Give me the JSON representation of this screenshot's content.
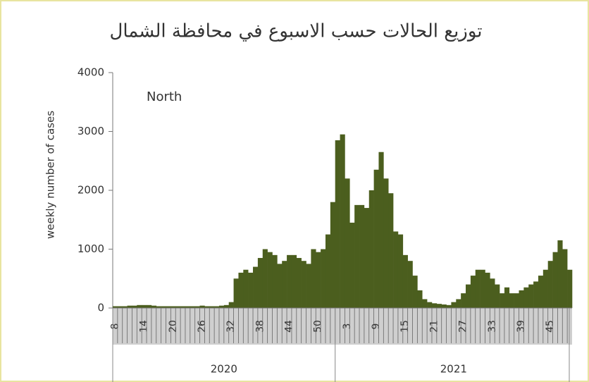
{
  "chart_data": {
    "type": "bar",
    "title": "توزيع الحالات حسب الاسبوع في محافظة الشمال",
    "annotation": "North",
    "y_label": "weekly number of cases",
    "color": "#4b5e1e",
    "ylim": [
      0,
      4000
    ],
    "yticks": [
      0,
      1000,
      2000,
      3000,
      4000
    ],
    "years": [
      "2020",
      "2021"
    ],
    "categories": [
      "8",
      null,
      null,
      null,
      null,
      null,
      "14",
      null,
      null,
      null,
      null,
      null,
      "20",
      null,
      null,
      null,
      null,
      null,
      "26",
      null,
      null,
      null,
      null,
      null,
      "32",
      null,
      null,
      null,
      null,
      null,
      "38",
      null,
      null,
      null,
      null,
      null,
      "44",
      null,
      null,
      null,
      null,
      null,
      "50",
      null,
      null,
      null,
      null,
      null,
      "3",
      null,
      null,
      null,
      null,
      null,
      "9",
      null,
      null,
      null,
      null,
      null,
      "15",
      null,
      null,
      null,
      null,
      null,
      "21",
      null,
      null,
      null,
      null,
      null,
      "27",
      null,
      null,
      null,
      null,
      null,
      "33",
      null,
      null,
      null,
      null,
      null,
      "39",
      null,
      null,
      null,
      null,
      null,
      "45",
      null,
      null,
      null,
      null
    ],
    "values": [
      30,
      30,
      30,
      40,
      40,
      50,
      50,
      50,
      40,
      30,
      30,
      30,
      30,
      30,
      30,
      30,
      30,
      30,
      40,
      30,
      30,
      30,
      40,
      50,
      100,
      500,
      600,
      650,
      600,
      700,
      850,
      1000,
      950,
      900,
      750,
      800,
      900,
      900,
      850,
      800,
      750,
      1000,
      950,
      1000,
      1250,
      1800,
      2850,
      2950,
      2200,
      1450,
      1750,
      1750,
      1700,
      2000,
      2350,
      2650,
      2200,
      1950,
      1300,
      1250,
      900,
      800,
      550,
      300,
      150,
      100,
      80,
      70,
      60,
      50,
      100,
      150,
      250,
      400,
      550,
      650,
      650,
      600,
      500,
      400,
      250,
      350,
      250,
      250,
      300,
      350,
      400,
      450,
      550,
      650,
      800,
      950,
      1150,
      1000,
      650
    ]
  }
}
